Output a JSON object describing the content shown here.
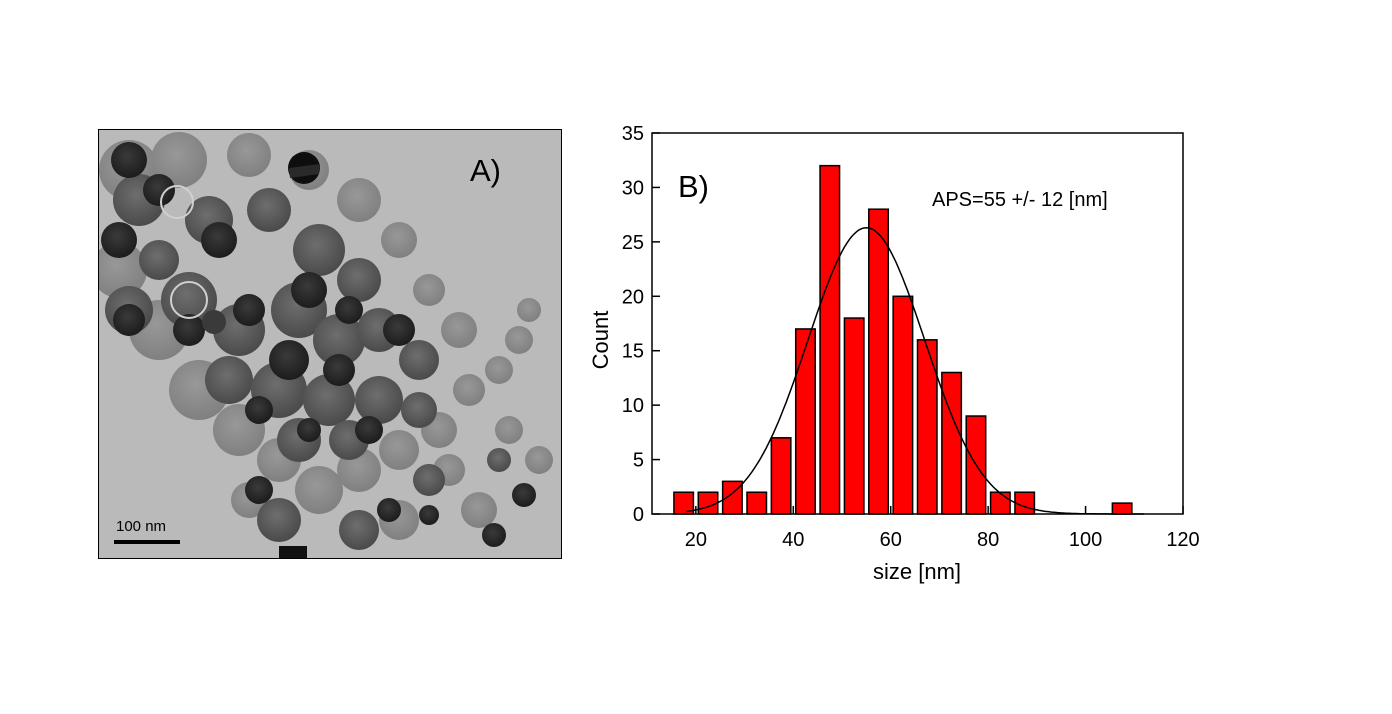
{
  "panel_a": {
    "label": "A)",
    "scale_bar_label": "100 nm",
    "image_description_icon": "tem-micrograph-icon"
  },
  "chart_data": {
    "type": "bar",
    "panel_label": "B)",
    "annotation": "APS=55 +/- 12 [nm]",
    "xlabel": "size [nm]",
    "ylabel": "Count",
    "xlim": [
      11,
      120
    ],
    "ylim": [
      0,
      35
    ],
    "xticks": [
      20,
      40,
      60,
      80,
      100,
      120
    ],
    "yticks": [
      0,
      5,
      10,
      15,
      20,
      25,
      30,
      35
    ],
    "bin_width": 5,
    "bar_width": 4,
    "bin_centers": [
      17.5,
      22.5,
      27.5,
      32.5,
      37.5,
      42.5,
      47.5,
      52.5,
      57.5,
      62.5,
      67.5,
      72.5,
      77.5,
      82.5,
      87.5,
      107.5
    ],
    "values": [
      2,
      2,
      3,
      2,
      7,
      17,
      32,
      18,
      28,
      20,
      16,
      13,
      9,
      2,
      2,
      1
    ],
    "bar_color": "#ff0000",
    "fit": {
      "type": "normal",
      "mean": 55,
      "sd": 12,
      "peak": 26.3,
      "x_range": [
        18,
        112
      ]
    },
    "grid": false
  }
}
